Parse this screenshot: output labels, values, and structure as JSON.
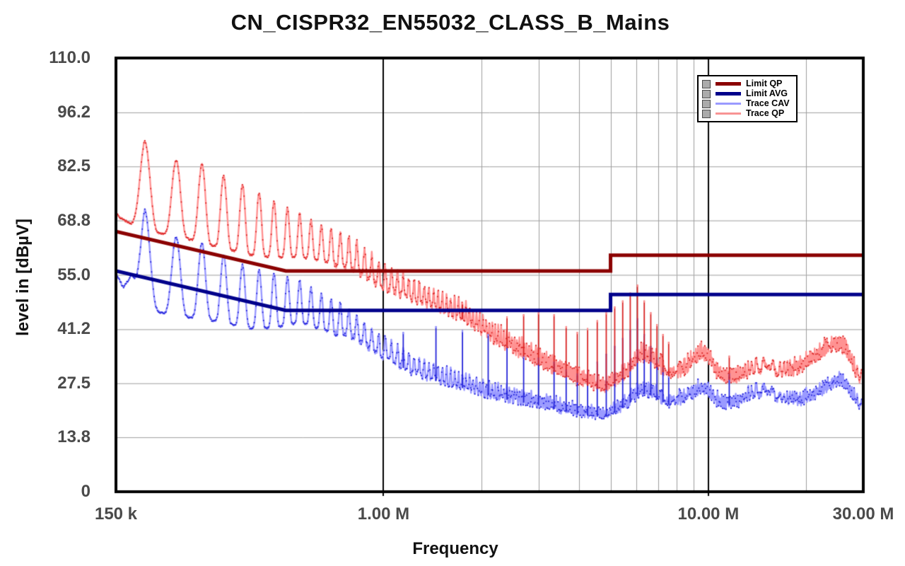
{
  "title": "CN_CISPR32_EN55032_CLASS_B_Mains",
  "y_axis": {
    "label": "level in [dBµV]",
    "min": 0,
    "max": 110,
    "ticks": [
      {
        "label": "110.0",
        "value": 110.0
      },
      {
        "label": "96.2",
        "value": 96.2
      },
      {
        "label": "82.5",
        "value": 82.5
      },
      {
        "label": "68.8",
        "value": 68.8
      },
      {
        "label": "55.0",
        "value": 55.0
      },
      {
        "label": "41.2",
        "value": 41.2
      },
      {
        "label": "27.5",
        "value": 27.5
      },
      {
        "label": "13.8",
        "value": 13.8
      },
      {
        "label": "0",
        "value": 0
      }
    ]
  },
  "x_axis": {
    "label": "Frequency",
    "scale": "log",
    "min_mhz": 0.15,
    "max_mhz": 30,
    "ticks": [
      {
        "label": "150 k",
        "mhz": 0.15
      },
      {
        "label": "1.00 M",
        "mhz": 1.0
      },
      {
        "label": "10.00 M",
        "mhz": 10.0
      },
      {
        "label": "30.00 M",
        "mhz": 30.0
      }
    ],
    "major_grid_mhz": [
      1.0,
      10.0
    ],
    "minor_grid_mhz": [
      2,
      3,
      4,
      5,
      6,
      7,
      8,
      9,
      20
    ]
  },
  "legend": {
    "items": [
      {
        "label": "Limit QP",
        "color": "#8b0000",
        "sample_height": 5
      },
      {
        "label": "Limit AVG",
        "color": "#00008b",
        "sample_height": 5
      },
      {
        "label": "Trace CAV",
        "color": "#9a9aff",
        "sample_height": 3
      },
      {
        "label": "Trace QP",
        "color": "#f89494",
        "sample_height": 3
      }
    ]
  },
  "style": {
    "background": "#ffffff",
    "frame_color": "#000000",
    "major_grid_color": "#000000",
    "minor_grid_color": "#9e9e9e",
    "tick_label_color": "#4a4a4a",
    "legend_checkbox_color": "#ababab"
  },
  "chart_data": {
    "type": "line",
    "title": "CN_CISPR32_EN55032_CLASS_B_Mains",
    "xlabel": "Frequency",
    "ylabel": "level in [dBµV]",
    "x_scale": "log",
    "x_range_mhz": [
      0.15,
      30
    ],
    "ylim": [
      0,
      110
    ],
    "comb_fundamental_khz": 46,
    "series": [
      {
        "name": "Limit QP",
        "role": "limit",
        "color": "#8b0000",
        "width": 5,
        "points_mhz_db": [
          [
            0.15,
            66
          ],
          [
            0.5,
            56
          ],
          [
            5,
            56
          ],
          [
            5,
            60
          ],
          [
            30,
            60
          ]
        ]
      },
      {
        "name": "Limit AVG",
        "role": "limit",
        "color": "#00008b",
        "width": 5,
        "points_mhz_db": [
          [
            0.15,
            56
          ],
          [
            0.5,
            46
          ],
          [
            5,
            46
          ],
          [
            5,
            50
          ],
          [
            30,
            50
          ]
        ]
      },
      {
        "name": "Trace QP",
        "role": "trace",
        "detector": "quasi-peak",
        "color_line": "#ff9292",
        "color_marker": "#d92424",
        "envelope_mid_mhz_db": [
          [
            0.15,
            71.5
          ],
          [
            0.184,
            77.5
          ],
          [
            0.23,
            74.5
          ],
          [
            0.28,
            73
          ],
          [
            0.33,
            70.5
          ],
          [
            0.39,
            68.5
          ],
          [
            0.46,
            66.5
          ],
          [
            0.55,
            65
          ],
          [
            0.65,
            63
          ],
          [
            0.8,
            60.5
          ],
          [
            1.0,
            54.5
          ],
          [
            1.3,
            50.5
          ],
          [
            1.75,
            46
          ],
          [
            2.2,
            40.3
          ],
          [
            3.0,
            34.3
          ],
          [
            4.0,
            29.2
          ],
          [
            4.8,
            27
          ],
          [
            5.6,
            31
          ],
          [
            6.2,
            35.5
          ],
          [
            6.6,
            35
          ],
          [
            7.5,
            31
          ],
          [
            8.3,
            31.5
          ],
          [
            9.5,
            36
          ],
          [
            10.0,
            35
          ],
          [
            10.8,
            30
          ],
          [
            12.5,
            30
          ],
          [
            14.0,
            32.4
          ],
          [
            15.5,
            31
          ],
          [
            17.0,
            31.5
          ],
          [
            19.0,
            32
          ],
          [
            21.0,
            34.5
          ],
          [
            23.0,
            37
          ],
          [
            25.0,
            38
          ],
          [
            26.5,
            37
          ],
          [
            28.0,
            32
          ],
          [
            30.0,
            28.4
          ]
        ],
        "envelope_amp_db": [
          [
            0.15,
            1.5
          ],
          [
            0.184,
            11.5
          ],
          [
            0.23,
            9.5
          ],
          [
            0.28,
            10
          ],
          [
            0.33,
            9
          ],
          [
            0.39,
            8.5
          ],
          [
            0.46,
            7
          ],
          [
            0.55,
            5.5
          ],
          [
            0.65,
            4.5
          ],
          [
            0.8,
            3.8
          ],
          [
            1.0,
            3
          ],
          [
            1.3,
            2.5
          ],
          [
            2.0,
            2.2
          ],
          [
            3.0,
            2.1
          ],
          [
            5.0,
            1.4
          ],
          [
            6.2,
            1.8
          ],
          [
            10.0,
            1.7
          ],
          [
            30.0,
            1.6
          ]
        ]
      },
      {
        "name": "Trace CAV",
        "role": "trace",
        "detector": "average",
        "color_line": "#9a9aff",
        "color_marker": "#2424d9",
        "envelope_mid_mhz_db": [
          [
            0.15,
            56
          ],
          [
            0.158,
            52.5
          ],
          [
            0.168,
            56
          ],
          [
            0.184,
            59
          ],
          [
            0.23,
            54.5
          ],
          [
            0.28,
            53.5
          ],
          [
            0.33,
            51
          ],
          [
            0.39,
            49
          ],
          [
            0.46,
            48.5
          ],
          [
            0.55,
            48.3
          ],
          [
            0.65,
            45.5
          ],
          [
            0.8,
            42.5
          ],
          [
            1.0,
            36.6
          ],
          [
            1.3,
            31.3
          ],
          [
            1.75,
            28.2
          ],
          [
            2.2,
            25.6
          ],
          [
            3.0,
            23.4
          ],
          [
            4.0,
            20.7
          ],
          [
            4.8,
            19.8
          ],
          [
            5.6,
            23
          ],
          [
            6.2,
            26.5
          ],
          [
            6.6,
            26
          ],
          [
            7.5,
            23.5
          ],
          [
            8.3,
            24
          ],
          [
            9.5,
            27
          ],
          [
            10.0,
            26.5
          ],
          [
            10.8,
            23
          ],
          [
            12.5,
            23.5
          ],
          [
            14.0,
            26
          ],
          [
            16.0,
            24.5
          ],
          [
            19.0,
            23.8
          ],
          [
            21.0,
            25
          ],
          [
            23.0,
            27
          ],
          [
            25.0,
            28.6
          ],
          [
            26.5,
            28
          ],
          [
            28.0,
            24.5
          ],
          [
            30.0,
            22
          ]
        ],
        "envelope_amp_db": [
          [
            0.15,
            0.6
          ],
          [
            0.158,
            0.7
          ],
          [
            0.168,
            0.9
          ],
          [
            0.184,
            12.5
          ],
          [
            0.23,
            10
          ],
          [
            0.28,
            9.5
          ],
          [
            0.33,
            8.5
          ],
          [
            0.39,
            7.5
          ],
          [
            0.46,
            7
          ],
          [
            0.55,
            5.3
          ],
          [
            0.65,
            4.5
          ],
          [
            0.8,
            3.2
          ],
          [
            1.0,
            2.7
          ],
          [
            1.3,
            2.1
          ],
          [
            2.0,
            1.8
          ],
          [
            3.0,
            1.5
          ],
          [
            4.8,
            1.0
          ],
          [
            6.2,
            1.5
          ],
          [
            30.0,
            1.2
          ]
        ]
      }
    ],
    "spikes_mhz_db": [
      {
        "mhz": 1.15,
        "cav": 40.5
      },
      {
        "mhz": 1.45,
        "cav": 42
      },
      {
        "mhz": 1.75,
        "qp": 48,
        "cav": 41
      },
      {
        "mhz": 2.1,
        "cav": 40
      },
      {
        "mhz": 2.4,
        "qp": 44.5,
        "cav": 37
      },
      {
        "mhz": 2.7,
        "qp": 45,
        "cav": 34.5
      },
      {
        "mhz": 3.0,
        "qp": 45.5,
        "cav": 34
      },
      {
        "mhz": 3.35,
        "qp": 45,
        "cav": 33
      },
      {
        "mhz": 3.65,
        "qp": 42,
        "cav": 31
      },
      {
        "mhz": 3.95,
        "qp": 40.5,
        "cav": 30
      },
      {
        "mhz": 4.25,
        "qp": 41.5,
        "cav": 31
      },
      {
        "mhz": 4.55,
        "qp": 43.5,
        "cav": 33
      },
      {
        "mhz": 4.85,
        "qp": 45.5,
        "cav": 35
      },
      {
        "mhz": 5.15,
        "qp": 47,
        "cav": 37
      },
      {
        "mhz": 5.45,
        "qp": 48.5,
        "cav": 39
      },
      {
        "mhz": 5.75,
        "qp": 50.5,
        "cav": 41
      },
      {
        "mhz": 6.05,
        "qp": 52.5,
        "cav": 44
      },
      {
        "mhz": 6.35,
        "qp": 48.5,
        "cav": 40
      },
      {
        "mhz": 6.65,
        "qp": 45.5,
        "cav": 37
      },
      {
        "mhz": 6.95,
        "qp": 42.5,
        "cav": 34
      },
      {
        "mhz": 7.25,
        "qp": 40,
        "cav": 31.5
      },
      {
        "mhz": 7.55,
        "qp": 38,
        "cav": 29.5
      },
      {
        "mhz": 11.6,
        "qp": 34.5,
        "cav": 30
      }
    ]
  }
}
